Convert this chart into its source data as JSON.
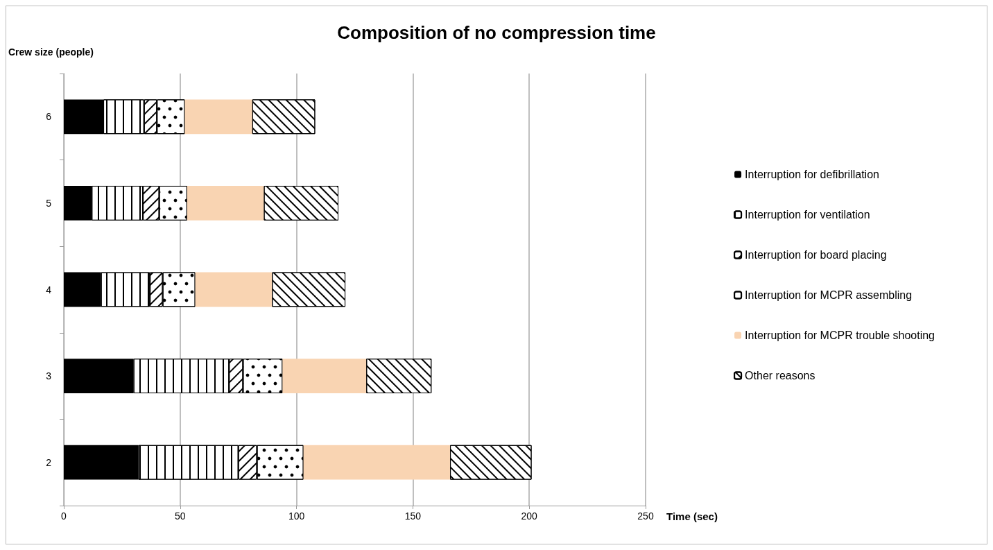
{
  "chart_data": {
    "type": "bar",
    "orientation": "horizontal",
    "stacked": true,
    "title": "Composition of no compression time",
    "xlabel": "Time (sec)",
    "ylabel": "Crew size (people)",
    "categories": [
      "6",
      "5",
      "4",
      "3",
      "2"
    ],
    "series": [
      {
        "name": "Interruption for defibrillation",
        "color": "#000000",
        "values": [
          17,
          12,
          16,
          30,
          32
        ]
      },
      {
        "name": "Interruption for ventilation",
        "color": "#000000",
        "values": [
          17.5,
          22,
          21,
          41,
          43
        ]
      },
      {
        "name": "Interruption for board placing",
        "color": "#000000",
        "values": [
          5.5,
          7,
          5.5,
          6,
          8
        ]
      },
      {
        "name": "Interruption for MCPR assembling",
        "color": "#000000",
        "values": [
          12,
          12,
          14,
          17,
          20
        ]
      },
      {
        "name": "Interruption for MCPR trouble shooting",
        "color": "#f9d4b2",
        "values": [
          29,
          33,
          33,
          36,
          63
        ]
      },
      {
        "name": "Other reasons",
        "color": "#000000",
        "values": [
          27,
          32,
          31.5,
          28,
          35
        ]
      }
    ],
    "xlim": [
      0,
      250
    ],
    "xticks": [
      0,
      50,
      100,
      150,
      200,
      250
    ],
    "grid": "x",
    "legend": "right"
  }
}
